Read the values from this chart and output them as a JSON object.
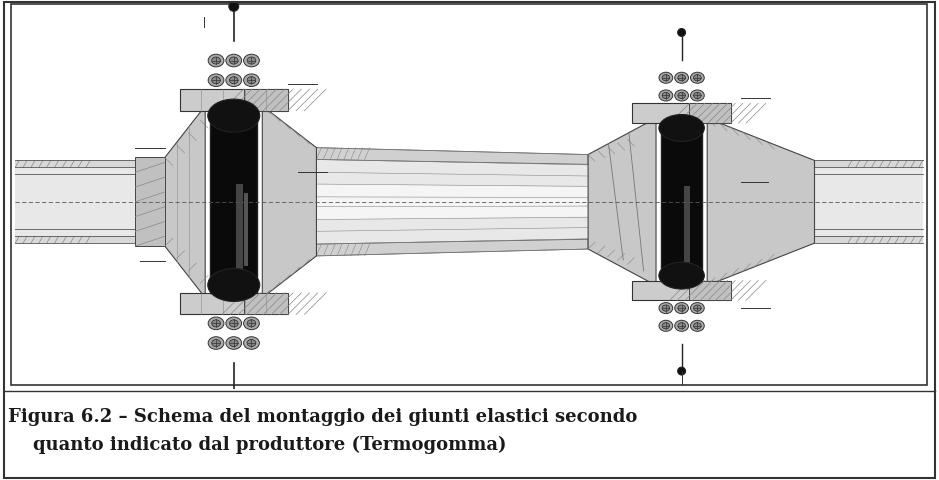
{
  "caption_line1": "Figura 6.2 – Schema del montaggio dei giunti elastici secondo",
  "caption_line2": "    quanto indicato dal produttore (Termogomma)",
  "caption_fontsize": 13,
  "caption_fontweight": "bold",
  "caption_color": "#1a1a1a",
  "fig_width": 9.39,
  "fig_height": 4.8,
  "dpi": 100
}
